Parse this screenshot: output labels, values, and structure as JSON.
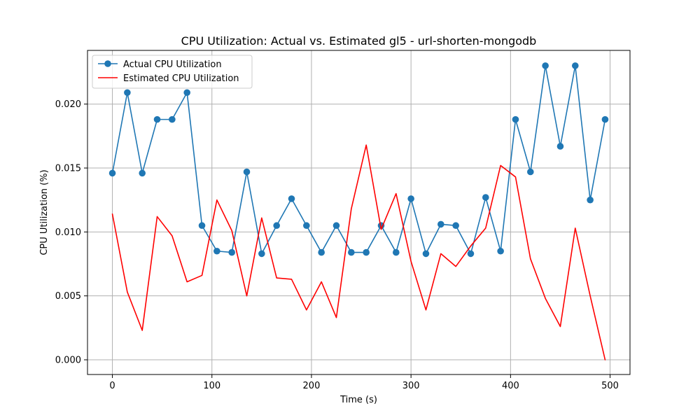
{
  "chart_data": {
    "type": "line",
    "title": "CPU Utilization: Actual vs. Estimated gl5 - url-shorten-mongodb",
    "xlabel": "Time (s)",
    "ylabel": "CPU Utilization (%)",
    "xlim": [
      -25,
      520
    ],
    "ylim": [
      -0.00115,
      0.0242
    ],
    "xticks": [
      0,
      100,
      200,
      300,
      400,
      500
    ],
    "xtick_labels": [
      "0",
      "100",
      "200",
      "300",
      "400",
      "500"
    ],
    "yticks": [
      0.0,
      0.005,
      0.01,
      0.015,
      0.02
    ],
    "ytick_labels": [
      "0.000",
      "0.005",
      "0.010",
      "0.015",
      "0.020"
    ],
    "grid": true,
    "legend_position": "upper-left",
    "x": [
      0,
      15,
      30,
      45,
      60,
      75,
      90,
      105,
      120,
      135,
      150,
      165,
      180,
      195,
      210,
      225,
      240,
      255,
      270,
      285,
      300,
      315,
      330,
      345,
      360,
      375,
      390,
      405,
      420,
      435,
      450,
      465,
      480,
      495
    ],
    "series": [
      {
        "name": "Actual CPU Utilization",
        "color": "#1f77b4",
        "marker": "circle",
        "values": [
          0.0146,
          0.0209,
          0.0146,
          0.0188,
          0.0188,
          0.0209,
          0.0105,
          0.0085,
          0.0084,
          0.0147,
          0.0083,
          0.0105,
          0.0126,
          0.0105,
          0.0084,
          0.0105,
          0.0084,
          0.0084,
          0.0105,
          0.0084,
          0.0126,
          0.0083,
          0.0106,
          0.0105,
          0.0083,
          0.0127,
          0.0085,
          0.0188,
          0.0147,
          0.023,
          0.0167,
          0.023,
          0.0125,
          0.0188
        ]
      },
      {
        "name": "Estimated CPU Utilization",
        "color": "#ff0000",
        "marker": "none",
        "values": [
          0.0114,
          0.0053,
          0.0023,
          0.0112,
          0.0097,
          0.0061,
          0.0066,
          0.0125,
          0.0101,
          0.005,
          0.0111,
          0.0064,
          0.0063,
          0.0039,
          0.0061,
          0.0033,
          0.0118,
          0.0168,
          0.0102,
          0.013,
          0.0077,
          0.0039,
          0.0083,
          0.0073,
          0.0089,
          0.0103,
          0.0152,
          0.0143,
          0.0079,
          0.0048,
          0.0026,
          0.0103,
          0.005,
          0.0
        ]
      }
    ]
  }
}
